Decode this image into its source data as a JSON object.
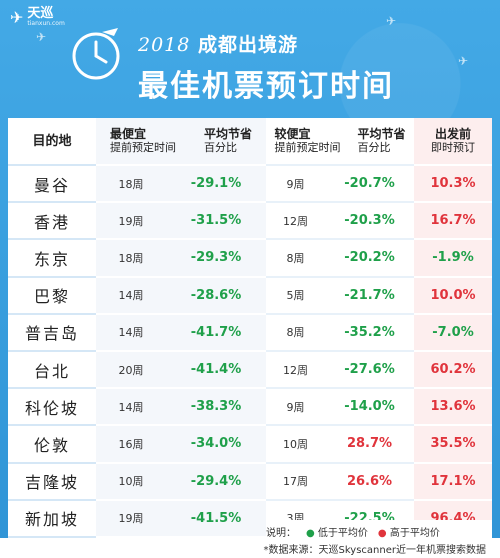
{
  "header": {
    "brand": "天巡",
    "brand_sub": "tianxun.com",
    "year": "2018",
    "title_line1": "成都出境游",
    "title_line2": "最佳机票预订时间"
  },
  "table": {
    "col_dest": "目的地",
    "col_best_title": "最便宜",
    "col_best_sub": "提前预定时间",
    "col_save_title": "平均节省",
    "col_save_sub": "百分比",
    "col_cheap_title": "较便宜",
    "col_cheap_sub": "提前预定时间",
    "col_save2_title": "平均节省",
    "col_save2_sub": "百分比",
    "col_last_title": "出发前",
    "col_last_sub": "即时预订",
    "rows": [
      {
        "dest": "曼谷",
        "best": "18周",
        "save": "-29.1%",
        "cheap": "9周",
        "save2": "-20.7%",
        "save2_color": "g",
        "last": "10.3%",
        "last_color": "r"
      },
      {
        "dest": "香港",
        "best": "19周",
        "save": "-31.5%",
        "cheap": "12周",
        "save2": "-20.3%",
        "save2_color": "g",
        "last": "16.7%",
        "last_color": "r"
      },
      {
        "dest": "东京",
        "best": "18周",
        "save": "-29.3%",
        "cheap": "8周",
        "save2": "-20.2%",
        "save2_color": "g",
        "last": "-1.9%",
        "last_color": "g"
      },
      {
        "dest": "巴黎",
        "best": "14周",
        "save": "-28.6%",
        "cheap": "5周",
        "save2": "-21.7%",
        "save2_color": "g",
        "last": "10.0%",
        "last_color": "r"
      },
      {
        "dest": "普吉岛",
        "best": "14周",
        "save": "-41.7%",
        "cheap": "8周",
        "save2": "-35.2%",
        "save2_color": "g",
        "last": "-7.0%",
        "last_color": "g"
      },
      {
        "dest": "台北",
        "best": "20周",
        "save": "-41.4%",
        "cheap": "12周",
        "save2": "-27.6%",
        "save2_color": "g",
        "last": "60.2%",
        "last_color": "r"
      },
      {
        "dest": "科伦坡",
        "best": "14周",
        "save": "-38.3%",
        "cheap": "9周",
        "save2": "-14.0%",
        "save2_color": "g",
        "last": "13.6%",
        "last_color": "r"
      },
      {
        "dest": "伦敦",
        "best": "16周",
        "save": "-34.0%",
        "cheap": "10周",
        "save2": "28.7%",
        "save2_color": "r",
        "last": "35.5%",
        "last_color": "r"
      },
      {
        "dest": "吉隆坡",
        "best": "10周",
        "save": "-29.4%",
        "cheap": "17周",
        "save2": "26.6%",
        "save2_color": "r",
        "last": "17.1%",
        "last_color": "r"
      },
      {
        "dest": "新加坡",
        "best": "19周",
        "save": "-41.5%",
        "cheap": "3周",
        "save2": "-22.5%",
        "save2_color": "g",
        "last": "96.4%",
        "last_color": "r"
      }
    ]
  },
  "legend": {
    "label": "说明：",
    "low": "低于平均价",
    "high": "高于平均价"
  },
  "footer": "*数据来源：天巡Skyscanner近一年机票搜索数据",
  "colors": {
    "green": "#1fa04a",
    "red": "#e0343c",
    "bg": "#3aa0e0"
  }
}
